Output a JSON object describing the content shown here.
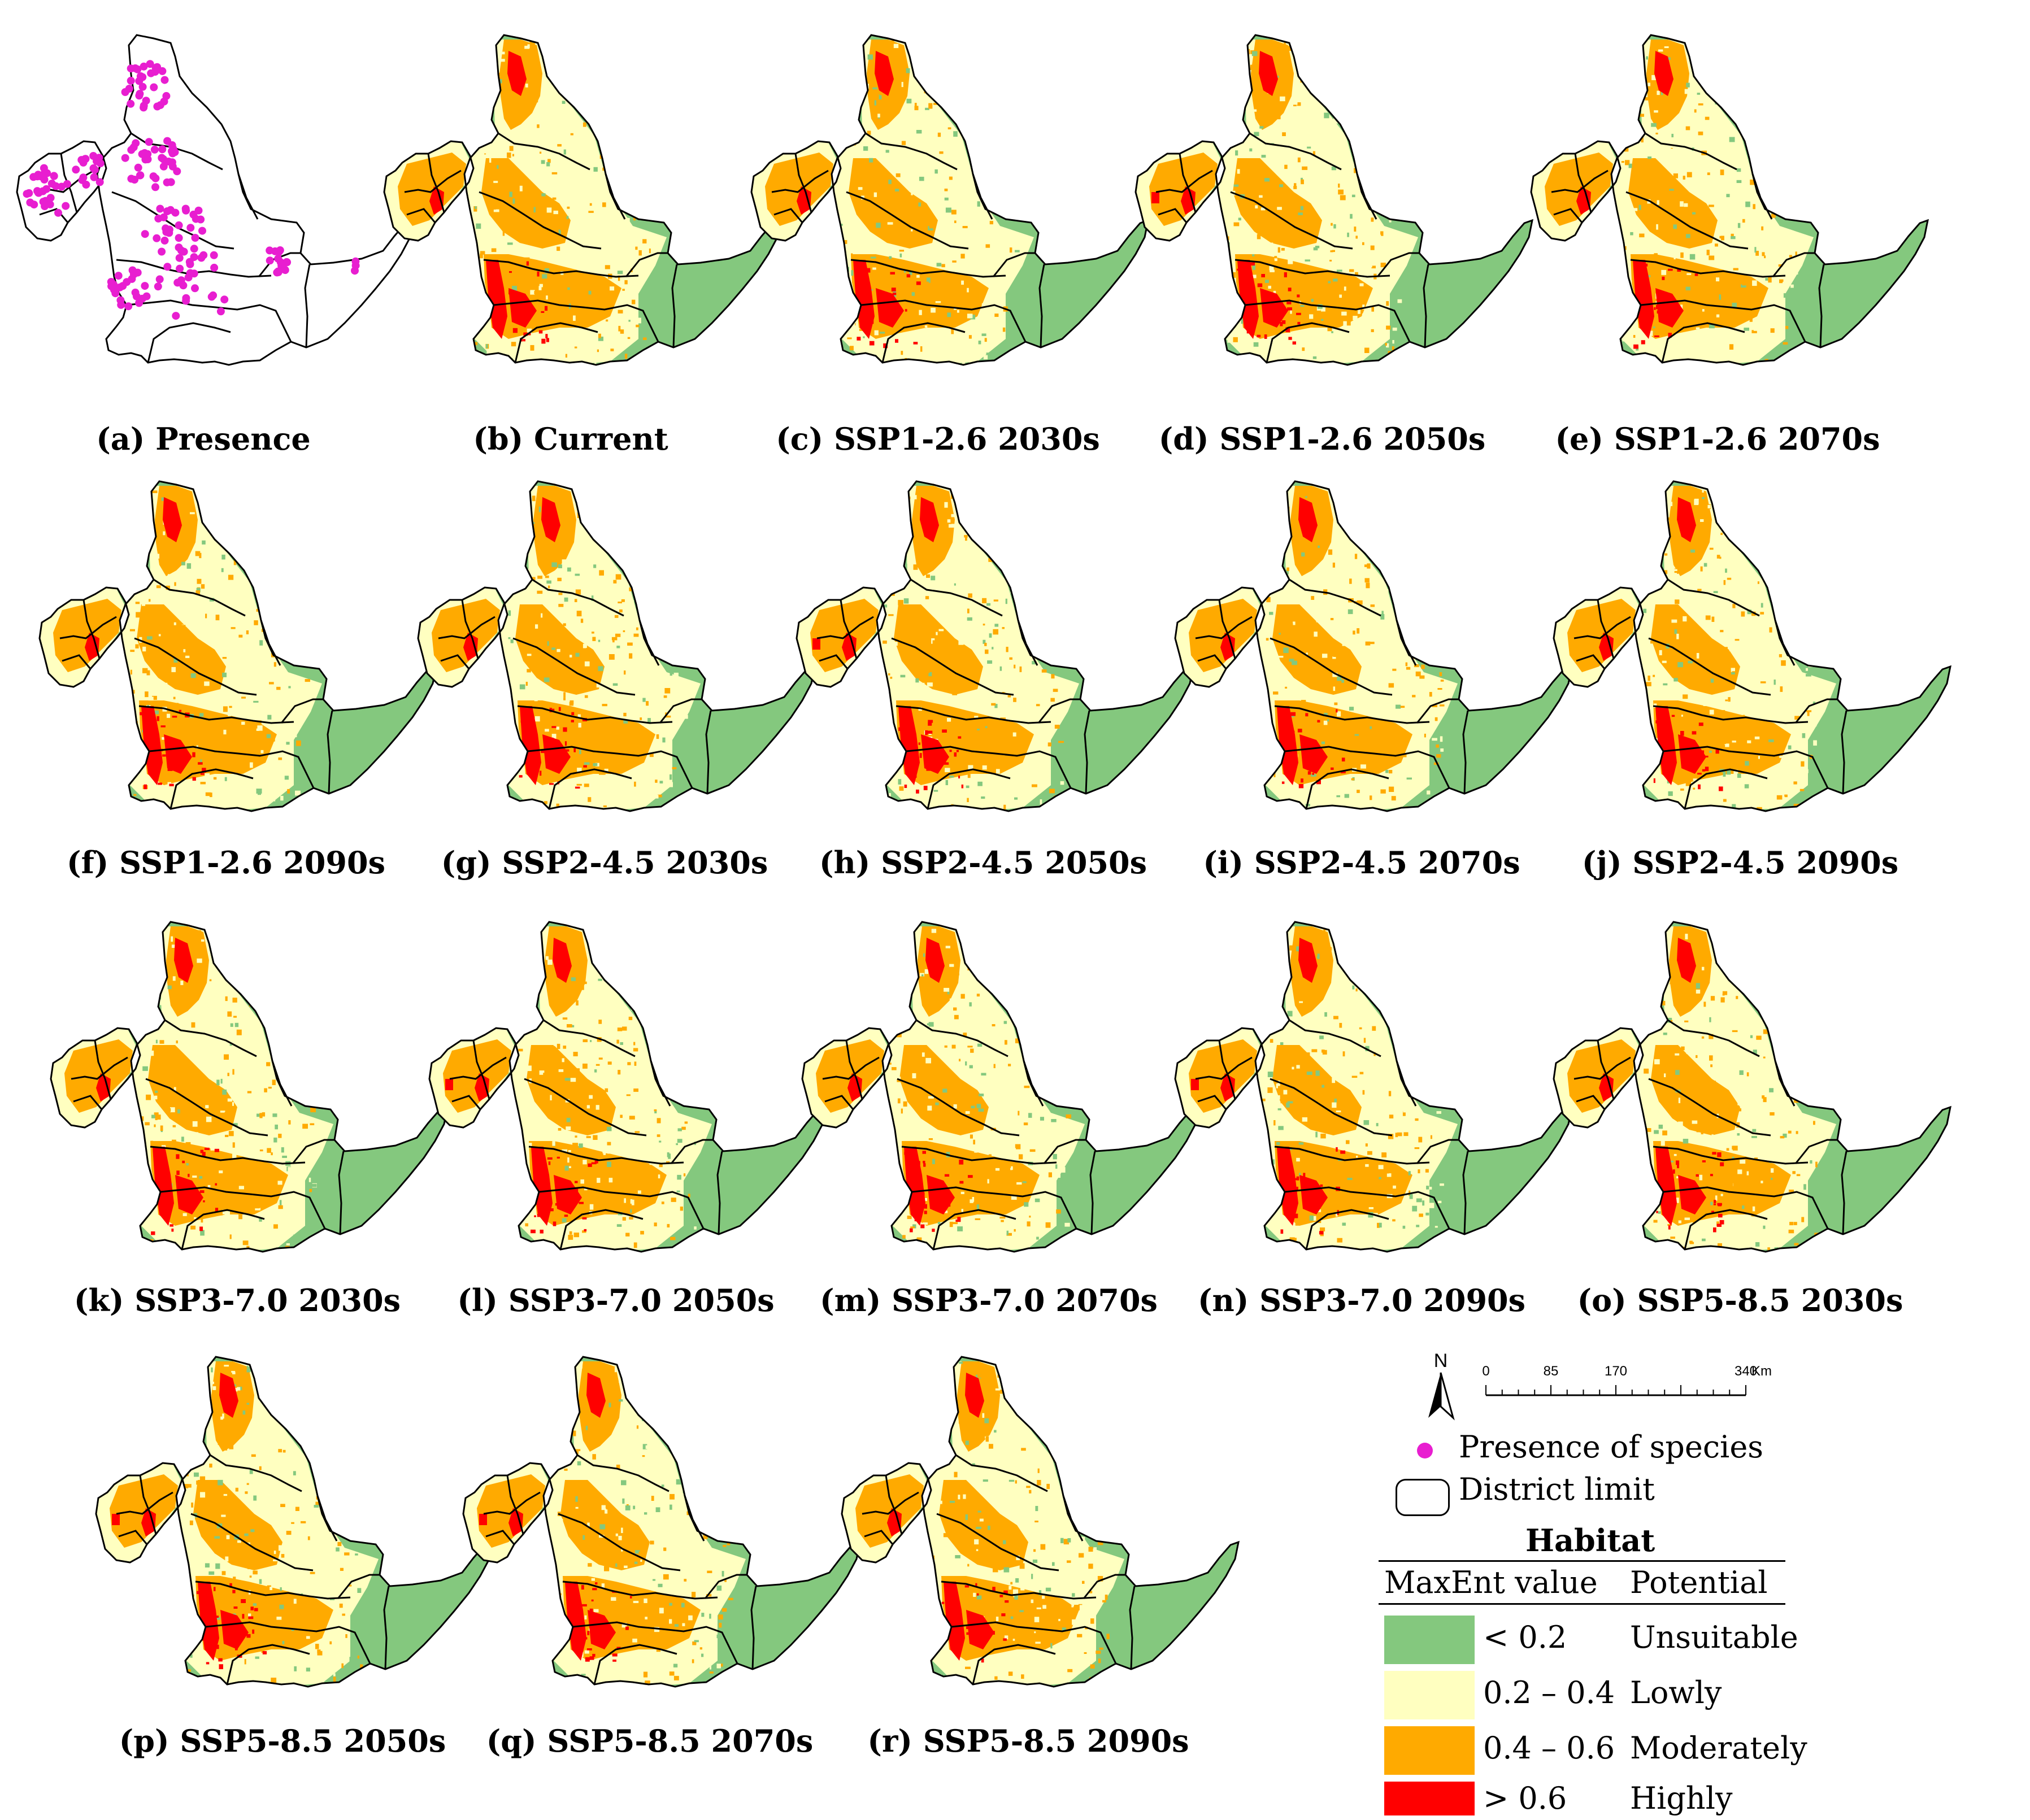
{
  "panels": [
    {
      "letter": "a",
      "caption": "(a) Presence",
      "kind": "presence"
    },
    {
      "letter": "b",
      "caption": "(b) Current",
      "kind": "habitat",
      "high": 0.55
    },
    {
      "letter": "c",
      "caption": "(c) SSP1-2.6 2030s",
      "kind": "habitat",
      "high": 0.5
    },
    {
      "letter": "d",
      "caption": "(d) SSP1-2.6 2050s",
      "kind": "habitat",
      "high": 0.7
    },
    {
      "letter": "e",
      "caption": "(e) SSP1-2.6 2070s",
      "kind": "habitat",
      "high": 0.4
    },
    {
      "letter": "f",
      "caption": "(f) SSP1-2.6 2090s",
      "kind": "habitat",
      "high": 0.6
    },
    {
      "letter": "g",
      "caption": "(g) SSP2-4.5 2030s",
      "kind": "habitat",
      "high": 0.6
    },
    {
      "letter": "h",
      "caption": "(h) SSP2-4.5 2050s",
      "kind": "habitat",
      "high": 0.7
    },
    {
      "letter": "i",
      "caption": "(i) SSP2-4.5 2070s",
      "kind": "habitat",
      "high": 0.5
    },
    {
      "letter": "j",
      "caption": "(j) SSP2-4.5 2090s",
      "kind": "habitat",
      "high": 0.55
    },
    {
      "letter": "k",
      "caption": "(k) SSP3-7.0 2030s",
      "kind": "habitat",
      "high": 0.5
    },
    {
      "letter": "l",
      "caption": "(l) SSP3-7.0 2050s",
      "kind": "habitat",
      "high": 0.75
    },
    {
      "letter": "m",
      "caption": "(m) SSP3-7.0 2070s",
      "kind": "habitat",
      "high": 0.6
    },
    {
      "letter": "n",
      "caption": "(n) SSP3-7.0 2090s",
      "kind": "habitat",
      "high": 0.65
    },
    {
      "letter": "o",
      "caption": "(o) SSP5-8.5 2030s",
      "kind": "habitat",
      "high": 0.6
    },
    {
      "letter": "p",
      "caption": "(p) SSP5-8.5 2050s",
      "kind": "habitat",
      "high": 0.65
    },
    {
      "letter": "q",
      "caption": "(q) SSP5-8.5 2070s",
      "kind": "habitat",
      "high": 0.7
    },
    {
      "letter": "r",
      "caption": "(r) SSP5-8.5 2090s",
      "kind": "habitat",
      "high": 0.6
    }
  ],
  "north_label": "N",
  "scalebar": {
    "ticks": [
      "0",
      "85",
      "170",
      "340"
    ],
    "unit": "Km"
  },
  "legend": {
    "presence_label": "Presence of species",
    "district_label": "District limit",
    "title": "Habitat",
    "col1": "MaxEnt value",
    "col2": "Potential",
    "classes": [
      {
        "range": "< 0.2",
        "potential": "Unsuitable",
        "color": "#84c87e"
      },
      {
        "range": "0.2 – 0.4",
        "potential": "Lowly",
        "color": "#ffffc0"
      },
      {
        "range": "0.4 – 0.6",
        "potential": "Moderately",
        "color": "#ffaa00"
      },
      {
        "range": "> 0.6",
        "potential": "Highly",
        "color": "#ff0000"
      }
    ],
    "presence_color": "#e81ed0"
  }
}
